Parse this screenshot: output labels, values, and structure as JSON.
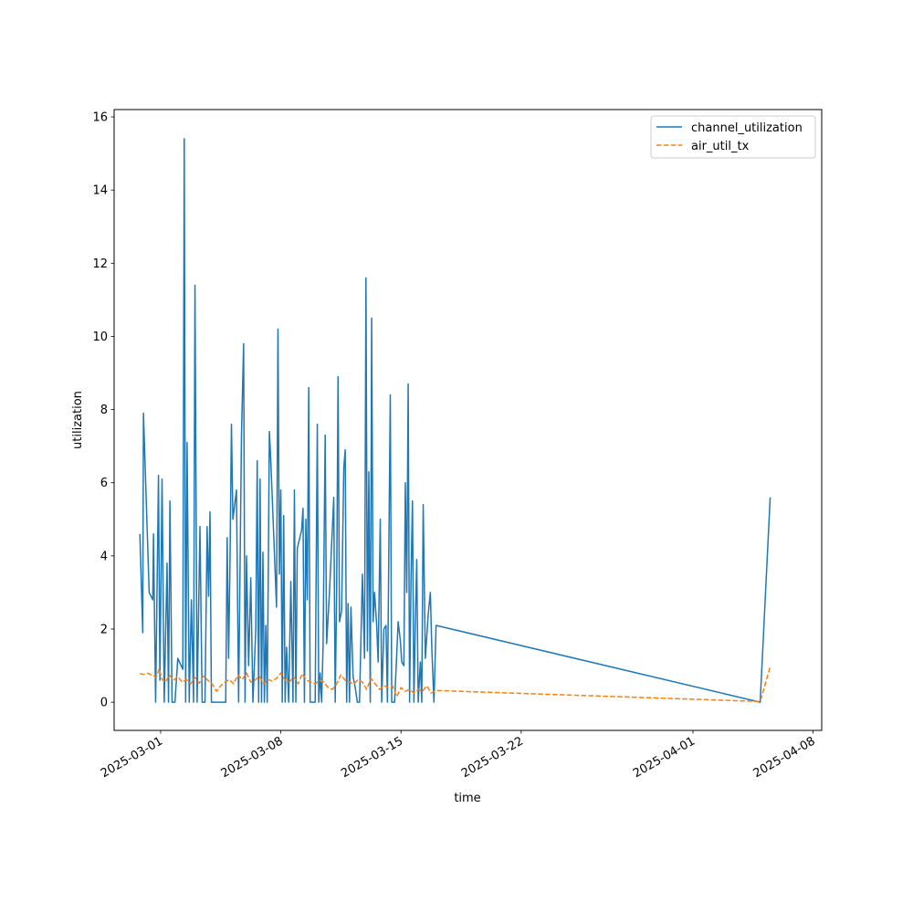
{
  "chart_data": {
    "type": "line",
    "title": "",
    "xlabel": "time",
    "ylabel": "utilization",
    "x_axis": {
      "kind": "date",
      "lim": [
        "2025-02-26T07:00",
        "2025-04-08T12:00"
      ],
      "ticks": [
        "2025-03-01",
        "2025-03-08",
        "2025-03-15",
        "2025-03-22",
        "2025-04-01",
        "2025-04-08"
      ]
    },
    "y_axis": {
      "lim": [
        -0.77,
        16.2
      ],
      "ticks": [
        0,
        2,
        4,
        6,
        8,
        10,
        12,
        14,
        16
      ]
    },
    "grid": false,
    "legend": {
      "placement": "top-right"
    },
    "series": [
      {
        "name": "channel_utilization",
        "color": "#1f77b4",
        "style": "solid",
        "points": [
          [
            "2025-02-27T19:00",
            4.6
          ],
          [
            "2025-02-27T23:00",
            1.9
          ],
          [
            "2025-02-28T00:00",
            7.9
          ],
          [
            "2025-02-28T08:00",
            3.0
          ],
          [
            "2025-02-28T13:00",
            2.8
          ],
          [
            "2025-02-28T14:00",
            4.6
          ],
          [
            "2025-02-28T17:00",
            0.0
          ],
          [
            "2025-02-28T21:00",
            6.2
          ],
          [
            "2025-02-28T23:00",
            0.6
          ],
          [
            "2025-03-01T02:00",
            6.1
          ],
          [
            "2025-03-01T05:00",
            0.0
          ],
          [
            "2025-03-01T09:00",
            3.8
          ],
          [
            "2025-03-01T11:00",
            0.0
          ],
          [
            "2025-03-01T13:00",
            5.5
          ],
          [
            "2025-03-01T16:00",
            0.0
          ],
          [
            "2025-03-01T20:00",
            0.0
          ],
          [
            "2025-03-02T00:00",
            1.2
          ],
          [
            "2025-03-02T07:00",
            0.9
          ],
          [
            "2025-03-02T09:00",
            15.4
          ],
          [
            "2025-03-02T11:00",
            0.0
          ],
          [
            "2025-03-02T13:00",
            7.1
          ],
          [
            "2025-03-02T16:00",
            0.0
          ],
          [
            "2025-03-02T19:00",
            2.8
          ],
          [
            "2025-03-02T22:00",
            0.0
          ],
          [
            "2025-03-03T00:00",
            11.4
          ],
          [
            "2025-03-03T03:00",
            0.0
          ],
          [
            "2025-03-03T07:00",
            4.8
          ],
          [
            "2025-03-03T10:00",
            0.0
          ],
          [
            "2025-03-03T14:00",
            0.0
          ],
          [
            "2025-03-03T17:00",
            4.8
          ],
          [
            "2025-03-03T19:00",
            2.9
          ],
          [
            "2025-03-03T21:00",
            5.2
          ],
          [
            "2025-03-03T23:00",
            0.0
          ],
          [
            "2025-03-04T12:00",
            0.0
          ],
          [
            "2025-03-04T19:00",
            0.0
          ],
          [
            "2025-03-04T21:00",
            4.5
          ],
          [
            "2025-03-04T23:00",
            1.2
          ],
          [
            "2025-03-05T01:00",
            3.9
          ],
          [
            "2025-03-05T03:00",
            7.6
          ],
          [
            "2025-03-05T05:00",
            5.0
          ],
          [
            "2025-03-05T10:00",
            5.8
          ],
          [
            "2025-03-05T13:00",
            0.0
          ],
          [
            "2025-03-05T17:00",
            7.3
          ],
          [
            "2025-03-05T20:00",
            9.8
          ],
          [
            "2025-03-05T22:00",
            0.0
          ],
          [
            "2025-03-06T00:00",
            4.0
          ],
          [
            "2025-03-06T03:00",
            1.0
          ],
          [
            "2025-03-06T06:00",
            3.4
          ],
          [
            "2025-03-06T09:00",
            0.0
          ],
          [
            "2025-03-06T13:00",
            2.0
          ],
          [
            "2025-03-06T15:00",
            6.6
          ],
          [
            "2025-03-06T17:00",
            0.0
          ],
          [
            "2025-03-06T19:00",
            6.1
          ],
          [
            "2025-03-06T21:00",
            0.0
          ],
          [
            "2025-03-06T23:00",
            4.1
          ],
          [
            "2025-03-07T01:00",
            0.0
          ],
          [
            "2025-03-07T03:00",
            2.1
          ],
          [
            "2025-03-07T05:00",
            0.0
          ],
          [
            "2025-03-07T08:00",
            7.4
          ],
          [
            "2025-03-07T10:00",
            6.6
          ],
          [
            "2025-03-07T18:00",
            2.6
          ],
          [
            "2025-03-07T20:00",
            10.2
          ],
          [
            "2025-03-07T22:00",
            3.5
          ],
          [
            "2025-03-08T00:00",
            5.8
          ],
          [
            "2025-03-08T02:00",
            0.0
          ],
          [
            "2025-03-08T04:00",
            5.1
          ],
          [
            "2025-03-08T06:00",
            0.0
          ],
          [
            "2025-03-08T08:00",
            1.5
          ],
          [
            "2025-03-08T11:00",
            0.0
          ],
          [
            "2025-03-08T14:00",
            3.3
          ],
          [
            "2025-03-08T17:00",
            0.0
          ],
          [
            "2025-03-08T19:00",
            5.8
          ],
          [
            "2025-03-08T21:00",
            0.0
          ],
          [
            "2025-03-08T23:00",
            4.2
          ],
          [
            "2025-03-09T05:00",
            4.7
          ],
          [
            "2025-03-09T07:00",
            5.3
          ],
          [
            "2025-03-09T09:00",
            0.0
          ],
          [
            "2025-03-09T11:00",
            5.0
          ],
          [
            "2025-03-09T13:00",
            2.8
          ],
          [
            "2025-03-09T15:00",
            8.6
          ],
          [
            "2025-03-09T17:00",
            0.0
          ],
          [
            "2025-03-09T20:00",
            0.0
          ],
          [
            "2025-03-10T00:00",
            0.0
          ],
          [
            "2025-03-10T03:00",
            7.6
          ],
          [
            "2025-03-10T05:00",
            0.0
          ],
          [
            "2025-03-10T07:00",
            0.8
          ],
          [
            "2025-03-10T09:00",
            0.0
          ],
          [
            "2025-03-10T11:00",
            1.5
          ],
          [
            "2025-03-10T14:00",
            7.3
          ],
          [
            "2025-03-10T16:00",
            1.6
          ],
          [
            "2025-03-10T20:00",
            3.0
          ],
          [
            "2025-03-11T02:00",
            5.6
          ],
          [
            "2025-03-11T04:00",
            0.0
          ],
          [
            "2025-03-11T06:00",
            3.0
          ],
          [
            "2025-03-11T08:00",
            8.9
          ],
          [
            "2025-03-11T10:00",
            2.2
          ],
          [
            "2025-03-11T13:00",
            2.5
          ],
          [
            "2025-03-11T16:00",
            6.4
          ],
          [
            "2025-03-11T18:00",
            6.9
          ],
          [
            "2025-03-11T20:00",
            0.0
          ],
          [
            "2025-03-11T22:00",
            2.7
          ],
          [
            "2025-03-12T00:00",
            0.0
          ],
          [
            "2025-03-12T02:00",
            2.6
          ],
          [
            "2025-03-12T05:00",
            0.7
          ],
          [
            "2025-03-12T08:00",
            0.4
          ],
          [
            "2025-03-12T11:00",
            0.0
          ],
          [
            "2025-03-12T14:00",
            0.0
          ],
          [
            "2025-03-12T18:00",
            3.5
          ],
          [
            "2025-03-12T21:00",
            1.2
          ],
          [
            "2025-03-12T23:00",
            11.6
          ],
          [
            "2025-03-13T01:00",
            1.4
          ],
          [
            "2025-03-13T03:00",
            6.3
          ],
          [
            "2025-03-13T05:00",
            0.0
          ],
          [
            "2025-03-13T07:00",
            10.5
          ],
          [
            "2025-03-13T09:00",
            2.2
          ],
          [
            "2025-03-13T11:00",
            3.0
          ],
          [
            "2025-03-13T14:00",
            2.1
          ],
          [
            "2025-03-13T16:00",
            1.1
          ],
          [
            "2025-03-13T19:00",
            5.0
          ],
          [
            "2025-03-13T21:00",
            0.0
          ],
          [
            "2025-03-14T00:00",
            2.0
          ],
          [
            "2025-03-14T03:00",
            2.1
          ],
          [
            "2025-03-14T05:00",
            0.0
          ],
          [
            "2025-03-14T09:00",
            8.4
          ],
          [
            "2025-03-14T11:00",
            0.0
          ],
          [
            "2025-03-14T15:00",
            0.0
          ],
          [
            "2025-03-14T20:00",
            2.2
          ],
          [
            "2025-03-14T23:00",
            1.7
          ],
          [
            "2025-03-15T01:00",
            1.1
          ],
          [
            "2025-03-15T04:00",
            1.0
          ],
          [
            "2025-03-15T06:00",
            6.0
          ],
          [
            "2025-03-15T08:00",
            3.0
          ],
          [
            "2025-03-15T10:00",
            8.7
          ],
          [
            "2025-03-15T12:00",
            0.0
          ],
          [
            "2025-03-15T14:00",
            3.4
          ],
          [
            "2025-03-15T16:00",
            5.5
          ],
          [
            "2025-03-15T18:00",
            0.0
          ],
          [
            "2025-03-15T20:00",
            2.2
          ],
          [
            "2025-03-15T22:00",
            3.9
          ],
          [
            "2025-03-16T00:00",
            0.0
          ],
          [
            "2025-03-16T03:00",
            1.1
          ],
          [
            "2025-03-16T05:00",
            0.0
          ],
          [
            "2025-03-16T07:00",
            5.4
          ],
          [
            "2025-03-16T10:00",
            1.2
          ],
          [
            "2025-03-16T14:00",
            2.4
          ],
          [
            "2025-03-16T17:00",
            3.0
          ],
          [
            "2025-03-16T19:00",
            1.5
          ],
          [
            "2025-03-16T22:00",
            0.0
          ],
          [
            "2025-03-17T01:00",
            2.1
          ],
          [
            "2025-04-04T22:00",
            0.0
          ],
          [
            "2025-04-05T12:00",
            5.6
          ]
        ]
      },
      {
        "name": "air_util_tx",
        "color": "#ff7f0e",
        "style": "dashed",
        "points": [
          [
            "2025-02-27T19:00",
            0.78
          ],
          [
            "2025-02-28T00:00",
            0.76
          ],
          [
            "2025-02-28T06:00",
            0.79
          ],
          [
            "2025-02-28T12:00",
            0.74
          ],
          [
            "2025-02-28T18:00",
            0.68
          ],
          [
            "2025-02-28T22:00",
            0.92
          ],
          [
            "2025-03-01T02:00",
            0.62
          ],
          [
            "2025-03-01T07:00",
            0.55
          ],
          [
            "2025-03-01T12:00",
            0.75
          ],
          [
            "2025-03-01T18:00",
            0.6
          ],
          [
            "2025-03-02T00:00",
            0.7
          ],
          [
            "2025-03-02T06:00",
            0.55
          ],
          [
            "2025-03-02T12:00",
            0.62
          ],
          [
            "2025-03-02T18:00",
            0.5
          ],
          [
            "2025-03-03T00:00",
            0.68
          ],
          [
            "2025-03-03T06:00",
            0.52
          ],
          [
            "2025-03-03T12:00",
            0.72
          ],
          [
            "2025-03-03T18:00",
            0.6
          ],
          [
            "2025-03-04T00:00",
            0.5
          ],
          [
            "2025-03-04T06:00",
            0.3
          ],
          [
            "2025-03-04T12:00",
            0.45
          ],
          [
            "2025-03-04T18:00",
            0.55
          ],
          [
            "2025-03-05T00:00",
            0.62
          ],
          [
            "2025-03-05T06:00",
            0.5
          ],
          [
            "2025-03-05T12:00",
            0.75
          ],
          [
            "2025-03-05T18:00",
            0.62
          ],
          [
            "2025-03-06T00:00",
            0.8
          ],
          [
            "2025-03-06T06:00",
            0.55
          ],
          [
            "2025-03-06T12:00",
            0.6
          ],
          [
            "2025-03-06T18:00",
            0.72
          ],
          [
            "2025-03-07T00:00",
            0.5
          ],
          [
            "2025-03-07T06:00",
            0.62
          ],
          [
            "2025-03-07T12:00",
            0.58
          ],
          [
            "2025-03-07T18:00",
            0.65
          ],
          [
            "2025-03-08T00:00",
            0.8
          ],
          [
            "2025-03-08T06:00",
            0.6
          ],
          [
            "2025-03-08T12:00",
            0.55
          ],
          [
            "2025-03-08T18:00",
            0.7
          ],
          [
            "2025-03-09T00:00",
            0.5
          ],
          [
            "2025-03-09T06:00",
            0.78
          ],
          [
            "2025-03-09T12:00",
            0.6
          ],
          [
            "2025-03-09T18:00",
            0.55
          ],
          [
            "2025-03-10T00:00",
            0.5
          ],
          [
            "2025-03-10T06:00",
            0.6
          ],
          [
            "2025-03-10T12:00",
            0.55
          ],
          [
            "2025-03-10T18:00",
            0.4
          ],
          [
            "2025-03-11T00:00",
            0.35
          ],
          [
            "2025-03-11T06:00",
            0.5
          ],
          [
            "2025-03-11T12:00",
            0.75
          ],
          [
            "2025-03-11T18:00",
            0.6
          ],
          [
            "2025-03-12T00:00",
            0.55
          ],
          [
            "2025-03-12T06:00",
            0.5
          ],
          [
            "2025-03-12T12:00",
            0.62
          ],
          [
            "2025-03-12T18:00",
            0.55
          ],
          [
            "2025-03-13T00:00",
            0.35
          ],
          [
            "2025-03-13T06:00",
            0.65
          ],
          [
            "2025-03-13T12:00",
            0.5
          ],
          [
            "2025-03-13T18:00",
            0.35
          ],
          [
            "2025-03-14T00:00",
            0.45
          ],
          [
            "2025-03-14T06:00",
            0.4
          ],
          [
            "2025-03-14T12:00",
            0.45
          ],
          [
            "2025-03-14T18:00",
            0.15
          ],
          [
            "2025-03-15T00:00",
            0.4
          ],
          [
            "2025-03-15T06:00",
            0.3
          ],
          [
            "2025-03-15T12:00",
            0.35
          ],
          [
            "2025-03-15T18:00",
            0.25
          ],
          [
            "2025-03-16T00:00",
            0.35
          ],
          [
            "2025-03-16T06:00",
            0.3
          ],
          [
            "2025-03-16T12:00",
            0.45
          ],
          [
            "2025-03-16T18:00",
            0.25
          ],
          [
            "2025-03-17T01:00",
            0.32
          ],
          [
            "2025-04-04T22:00",
            0.02
          ],
          [
            "2025-04-05T12:00",
            0.97
          ]
        ]
      }
    ]
  }
}
